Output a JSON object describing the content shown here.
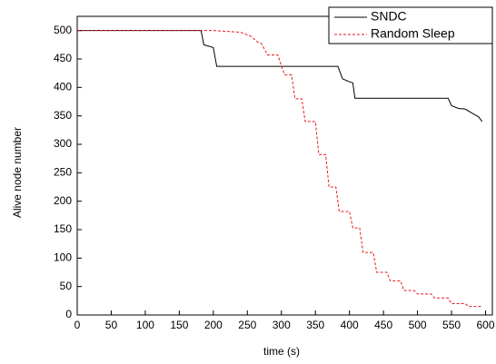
{
  "chart_data": {
    "type": "line",
    "x_label": "time (s)",
    "y_label": "Alive node number",
    "xlim": [
      0,
      610
    ],
    "ylim": [
      0,
      525
    ],
    "xticks": [
      0,
      50,
      100,
      150,
      200,
      250,
      300,
      350,
      400,
      450,
      500,
      550,
      600
    ],
    "yticks": [
      0,
      50,
      100,
      150,
      200,
      250,
      300,
      350,
      400,
      450,
      500
    ],
    "legend": "upper right",
    "series": [
      {
        "name": "SNDC",
        "color": "#000000",
        "dash": false,
        "x": [
          0,
          182,
          186,
          195,
          200,
          205,
          383,
          390,
          400,
          405,
          408,
          545,
          550,
          560,
          570,
          580,
          590,
          595
        ],
        "values": [
          500,
          500,
          475,
          472,
          470,
          437,
          437,
          415,
          410,
          408,
          381,
          381,
          368,
          363,
          362,
          355,
          348,
          340
        ]
      },
      {
        "name": "Random Sleep",
        "color": "#e8171c",
        "dash": true,
        "x": [
          0,
          200,
          240,
          255,
          265,
          270,
          280,
          295,
          300,
          305,
          315,
          320,
          330,
          335,
          350,
          355,
          365,
          370,
          380,
          385,
          400,
          405,
          415,
          420,
          435,
          440,
          455,
          460,
          475,
          480,
          495,
          500,
          520,
          525,
          545,
          550,
          570,
          575,
          595
        ],
        "values": [
          500,
          500,
          497,
          490,
          480,
          478,
          457,
          457,
          437,
          422,
          422,
          380,
          380,
          340,
          340,
          282,
          282,
          225,
          225,
          182,
          182,
          153,
          153,
          110,
          110,
          75,
          75,
          60,
          60,
          43,
          43,
          37,
          37,
          30,
          30,
          20,
          20,
          15,
          15
        ]
      }
    ]
  }
}
